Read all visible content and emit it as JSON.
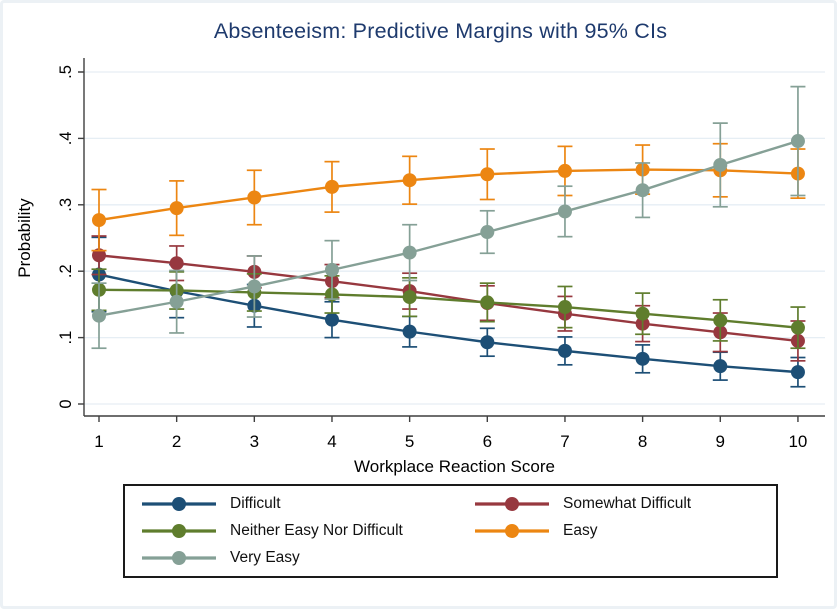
{
  "title": "Absenteeism: Predictive Margins with 95% CIs",
  "colors": {
    "title_text": "#1e3a6d",
    "axis_line": "#3f3f3f",
    "grid_line": "#e6eef4",
    "tick_text": "#000000",
    "frame_border": "#ecf1f5",
    "legend_border": "#1a1a1a"
  },
  "chart_data": {
    "type": "line",
    "title": "Absenteeism: Predictive Margins with 95% CIs",
    "xlabel": "Workplace Reaction Score",
    "ylabel": "Probability",
    "x": [
      1,
      2,
      3,
      4,
      5,
      6,
      7,
      8,
      9,
      10
    ],
    "xtick_labels": [
      "1",
      "2",
      "3",
      "4",
      "5",
      "6",
      "7",
      "8",
      "9",
      "10"
    ],
    "yticks": [
      0,
      0.1,
      0.2,
      0.3,
      0.4,
      0.5
    ],
    "ytick_labels": [
      "0",
      ".1",
      ".2",
      ".3",
      ".4",
      ".5"
    ],
    "xlim": [
      1,
      10
    ],
    "ylim": [
      0,
      0.5
    ],
    "grid": "horizontal",
    "error_bars": "95% confidence intervals",
    "legend_position": "bottom",
    "series": [
      {
        "name": "Difficult",
        "color": "#1d4f76",
        "values": [
          0.195,
          0.17,
          0.148,
          0.127,
          0.109,
          0.093,
          0.08,
          0.068,
          0.057,
          0.048
        ],
        "ci_low": [
          0.139,
          0.13,
          0.116,
          0.1,
          0.086,
          0.072,
          0.059,
          0.047,
          0.036,
          0.026
        ],
        "ci_high": [
          0.251,
          0.21,
          0.18,
          0.154,
          0.132,
          0.114,
          0.101,
          0.089,
          0.078,
          0.07
        ]
      },
      {
        "name": "Somewhat Difficult",
        "color": "#97383f",
        "values": [
          0.224,
          0.212,
          0.199,
          0.185,
          0.17,
          0.152,
          0.136,
          0.121,
          0.108,
          0.095
        ],
        "ci_low": [
          0.195,
          0.186,
          0.175,
          0.16,
          0.143,
          0.126,
          0.11,
          0.094,
          0.079,
          0.065
        ],
        "ci_high": [
          0.253,
          0.238,
          0.223,
          0.21,
          0.197,
          0.178,
          0.162,
          0.148,
          0.137,
          0.125
        ]
      },
      {
        "name": "Neither Easy Nor Difficult",
        "color": "#5f7d2d",
        "values": [
          0.172,
          0.171,
          0.168,
          0.165,
          0.161,
          0.153,
          0.146,
          0.136,
          0.126,
          0.115
        ],
        "ci_low": [
          0.141,
          0.143,
          0.14,
          0.137,
          0.132,
          0.124,
          0.115,
          0.105,
          0.095,
          0.084
        ],
        "ci_high": [
          0.203,
          0.199,
          0.196,
          0.193,
          0.19,
          0.182,
          0.177,
          0.167,
          0.157,
          0.146
        ]
      },
      {
        "name": "Easy",
        "color": "#ec8612",
        "values": [
          0.277,
          0.295,
          0.311,
          0.327,
          0.337,
          0.346,
          0.351,
          0.353,
          0.352,
          0.347
        ],
        "ci_low": [
          0.231,
          0.254,
          0.27,
          0.289,
          0.301,
          0.308,
          0.314,
          0.316,
          0.312,
          0.31
        ],
        "ci_high": [
          0.323,
          0.336,
          0.352,
          0.365,
          0.373,
          0.384,
          0.388,
          0.39,
          0.392,
          0.384
        ]
      },
      {
        "name": "Very Easy",
        "color": "#85a096",
        "values": [
          0.133,
          0.154,
          0.177,
          0.202,
          0.228,
          0.259,
          0.29,
          0.322,
          0.36,
          0.396
        ],
        "ci_low": [
          0.084,
          0.107,
          0.131,
          0.158,
          0.186,
          0.227,
          0.252,
          0.281,
          0.297,
          0.314
        ],
        "ci_high": [
          0.182,
          0.201,
          0.223,
          0.246,
          0.27,
          0.291,
          0.328,
          0.363,
          0.423,
          0.478
        ]
      }
    ]
  }
}
